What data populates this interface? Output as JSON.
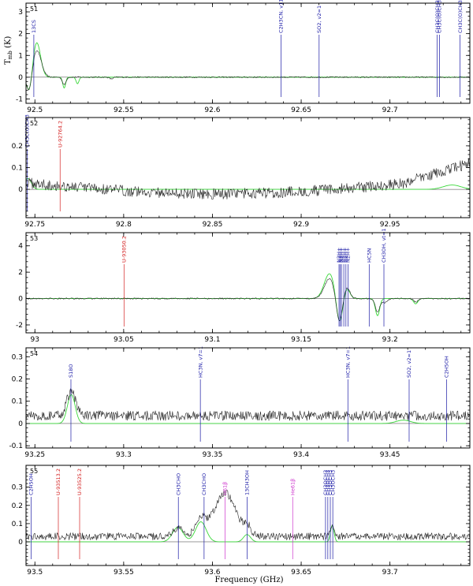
{
  "figure": {
    "xlabel": "Frequency (GHz)",
    "ylabel_main": "T",
    "ylabel_sub": "mb",
    "ylabel_unit": "(K)"
  },
  "chart_data": [
    {
      "type": "line",
      "panel": "51",
      "xlim": [
        92.495,
        92.745
      ],
      "ylim": [
        -1.2,
        3.4
      ],
      "xticks": [
        92.5,
        92.55,
        92.6,
        92.65,
        92.7
      ],
      "xticklabels": [
        "92.5",
        "92.55",
        "92.6",
        "92.65",
        "92.7"
      ],
      "yticks": [
        -1,
        0,
        1,
        2,
        3
      ],
      "yticklabels": [
        "-1",
        "0",
        "1",
        "2",
        "3"
      ],
      "features": [
        {
          "c": 92.497,
          "a": -0.85,
          "w": 0.0015
        },
        {
          "c": 92.501,
          "a": 1.25,
          "w": 0.0025
        },
        {
          "c": 92.5165,
          "a": -0.35,
          "w": 0.001
        },
        {
          "c": 92.543,
          "a": -0.08,
          "w": 0.001
        }
      ],
      "model_features": [
        {
          "c": 92.497,
          "a": -0.8,
          "w": 0.0015
        },
        {
          "c": 92.501,
          "a": 1.6,
          "w": 0.0022
        },
        {
          "c": 92.5165,
          "a": -0.5,
          "w": 0.0008
        },
        {
          "c": 92.524,
          "a": -0.3,
          "w": 0.0008
        }
      ],
      "noise": 0.03,
      "lines": [
        {
          "label": "13CS",
          "x": 92.4994,
          "color": "#1a1aa6"
        },
        {
          "label": "C2H3CN, v11=1",
          "x": 92.6386,
          "color": "#1a1aa6"
        },
        {
          "label": "SO2, v2=1",
          "x": 92.6601,
          "color": "#1a1aa6"
        },
        {
          "label": "CH3C(O)CH3",
          "x": 92.7266,
          "color": "#1a1aa6"
        },
        {
          "label": "CH3C(O)CH3",
          "x": 92.7279,
          "color": "#1a1aa6"
        },
        {
          "label": "CH3C(O)CH3",
          "x": 92.7395,
          "color": "#1a1aa6"
        }
      ]
    },
    {
      "type": "line",
      "panel": "52",
      "xlim": [
        92.745,
        92.995
      ],
      "ylim": [
        -0.13,
        0.33
      ],
      "xticks": [
        92.75,
        92.8,
        92.85,
        92.9,
        92.95
      ],
      "xticklabels": [
        "92.75",
        "92.8",
        "92.85",
        "92.9",
        "92.95"
      ],
      "yticks": [
        0,
        0.1,
        0.2
      ],
      "yticklabels": [
        "0",
        "0.1",
        "0.2"
      ],
      "features": [],
      "model_features": [
        {
          "c": 92.746,
          "a": 0.05,
          "w": 0.002
        },
        {
          "c": 92.985,
          "a": 0.02,
          "w": 0.005
        }
      ],
      "noise": 0.025,
      "baseline_shape": "dip",
      "lines": [
        {
          "label": "CH3C(O)CH3",
          "x": 92.7456,
          "color": "#1a1aa6"
        },
        {
          "label": "U-92764.2",
          "x": 92.7642,
          "color": "#d42020"
        }
      ]
    },
    {
      "type": "line",
      "panel": "53",
      "xlim": [
        92.995,
        93.245
      ],
      "ylim": [
        -2.6,
        5.0
      ],
      "xticks": [
        93.0,
        93.05,
        93.1,
        93.15,
        93.2
      ],
      "xticklabels": [
        "93",
        "93.05",
        "93.1",
        "93.15",
        "93.2"
      ],
      "yticks": [
        -2,
        0,
        2,
        4
      ],
      "yticklabels": [
        "-2",
        "0",
        "2",
        "4"
      ],
      "features": [
        {
          "c": 93.166,
          "a": 1.5,
          "w": 0.003
        },
        {
          "c": 93.1715,
          "a": -2.0,
          "w": 0.0018
        },
        {
          "c": 93.1755,
          "a": 0.9,
          "w": 0.0018
        },
        {
          "c": 93.193,
          "a": -1.0,
          "w": 0.0012
        },
        {
          "c": 93.197,
          "a": -0.3,
          "w": 0.0015
        },
        {
          "c": 93.2145,
          "a": -0.25,
          "w": 0.0012
        }
      ],
      "model_features": [
        {
          "c": 93.166,
          "a": 1.9,
          "w": 0.003
        },
        {
          "c": 93.1715,
          "a": -2.1,
          "w": 0.0018
        },
        {
          "c": 93.1755,
          "a": 0.8,
          "w": 0.0018
        },
        {
          "c": 93.193,
          "a": -1.3,
          "w": 0.0012
        },
        {
          "c": 93.2145,
          "a": -0.4,
          "w": 0.0012
        }
      ],
      "noise": 0.05,
      "lines": [
        {
          "label": "U-93050.2",
          "x": 93.0502,
          "color": "#d42020"
        },
        {
          "label": "N2H+",
          "x": 93.1713,
          "color": "#1a1aa6"
        },
        {
          "label": "N2H+",
          "x": 93.172,
          "color": "#1a1aa6"
        },
        {
          "label": "N2H+",
          "x": 93.1727,
          "color": "#1a1aa6"
        },
        {
          "label": "N2H+",
          "x": 93.174,
          "color": "#1a1aa6"
        },
        {
          "label": "N2H+",
          "x": 93.1752,
          "color": "#1a1aa6"
        },
        {
          "label": "N2H+",
          "x": 93.1764,
          "color": "#1a1aa6"
        },
        {
          "label": "HC5N",
          "x": 93.1883,
          "color": "#1a1aa6"
        },
        {
          "label": "CH3OH, vt=1",
          "x": 93.1966,
          "color": "#1a1aa6"
        }
      ]
    },
    {
      "type": "line",
      "panel": "54",
      "xlim": [
        93.245,
        93.495
      ],
      "ylim": [
        -0.11,
        0.34
      ],
      "xticks": [
        93.25,
        93.3,
        93.35,
        93.4,
        93.45
      ],
      "xticklabels": [
        "93.25",
        "93.3",
        "93.35",
        "93.4",
        "93.45"
      ],
      "yticks": [
        -0.1,
        0,
        0.1,
        0.2,
        0.3
      ],
      "yticklabels": [
        "-0.1",
        "0",
        "0.1",
        "0.2",
        "0.3"
      ],
      "features": [
        {
          "c": 93.2705,
          "a": 0.11,
          "w": 0.0025
        }
      ],
      "model_features": [
        {
          "c": 93.2705,
          "a": 0.13,
          "w": 0.0022
        },
        {
          "c": 93.4575,
          "a": 0.015,
          "w": 0.004
        }
      ],
      "noise": 0.022,
      "baseline_offset": 0.035,
      "lines": [
        {
          "label": "S18O",
          "x": 93.2703,
          "color": "#1a1aa6"
        },
        {
          "label": "HC3N, v7=1",
          "x": 93.3432,
          "color": "#1a1aa6"
        },
        {
          "label": "HC3N, v7=1",
          "x": 93.4263,
          "color": "#1a1aa6"
        },
        {
          "label": "SO2, v2=1",
          "x": 93.4608,
          "color": "#1a1aa6"
        },
        {
          "label": "C2H5OH",
          "x": 93.4819,
          "color": "#1a1aa6"
        }
      ]
    },
    {
      "type": "line",
      "panel": "55",
      "xlim": [
        93.495,
        93.745
      ],
      "ylim": [
        -0.13,
        0.42
      ],
      "xticks": [
        93.5,
        93.55,
        93.6,
        93.65,
        93.7
      ],
      "xticklabels": [
        "93.5",
        "93.55",
        "93.6",
        "93.65",
        "93.7"
      ],
      "yticks": [
        0,
        0.1,
        0.2,
        0.3
      ],
      "yticklabels": [
        "0",
        "0.1",
        "0.2",
        "0.3"
      ],
      "features": [
        {
          "c": 93.5805,
          "a": 0.045,
          "w": 0.003
        },
        {
          "c": 93.5935,
          "a": 0.09,
          "w": 0.003
        },
        {
          "c": 93.607,
          "a": 0.24,
          "w": 0.006
        },
        {
          "c": 93.6195,
          "a": 0.05,
          "w": 0.002
        },
        {
          "c": 93.6675,
          "a": 0.045,
          "w": 0.001
        }
      ],
      "model_features": [
        {
          "c": 93.5805,
          "a": 0.08,
          "w": 0.003
        },
        {
          "c": 93.5935,
          "a": 0.11,
          "w": 0.003
        },
        {
          "c": 93.6195,
          "a": 0.04,
          "w": 0.002
        },
        {
          "c": 93.6675,
          "a": 0.09,
          "w": 0.001
        }
      ],
      "noise": 0.02,
      "baseline_offset": 0.03,
      "lines": [
        {
          "label": "C2H5OH",
          "x": 93.4979,
          "color": "#1a1aa6"
        },
        {
          "label": "U-93513.2",
          "x": 93.5132,
          "color": "#d42020"
        },
        {
          "label": "U-93525.2",
          "x": 93.5252,
          "color": "#d42020"
        },
        {
          "label": "CH3CHO",
          "x": 93.5808,
          "color": "#1a1aa6"
        },
        {
          "label": "CH3CHO",
          "x": 93.5953,
          "color": "#1a1aa6"
        },
        {
          "label": "H61β",
          "x": 93.6071,
          "color": "#cc33cc"
        },
        {
          "label": "13CH3OH",
          "x": 93.6195,
          "color": "#1a1aa6"
        },
        {
          "label": "He61β",
          "x": 93.6452,
          "color": "#cc33cc"
        },
        {
          "label": "CH3OCH3",
          "x": 93.6637,
          "color": "#1a1aa6"
        },
        {
          "label": "CH3OCH3",
          "x": 93.665,
          "color": "#1a1aa6"
        },
        {
          "label": "CH3OCH3",
          "x": 93.6664,
          "color": "#1a1aa6"
        },
        {
          "label": "CH3OCH3",
          "x": 93.6678,
          "color": "#1a1aa6"
        }
      ]
    }
  ]
}
